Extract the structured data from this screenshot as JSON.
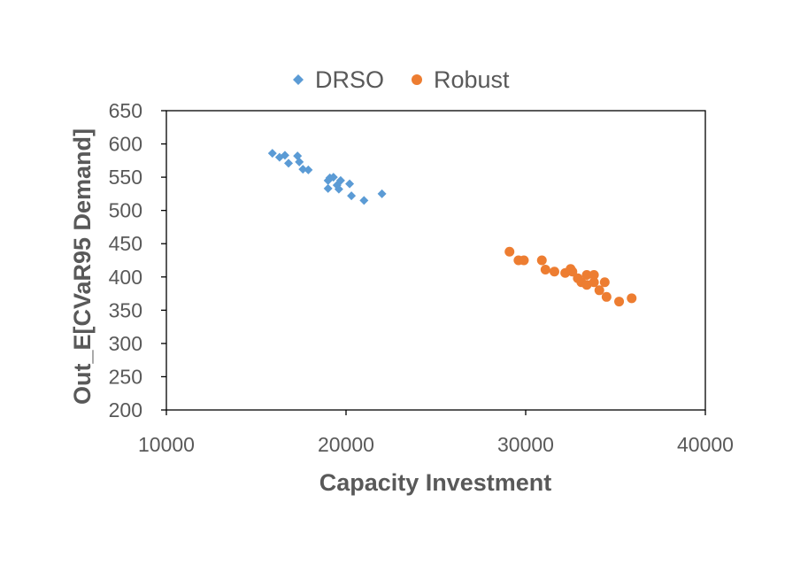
{
  "chart_data": {
    "type": "scatter",
    "title": "",
    "xlabel": "Capacity Investment",
    "ylabel": "Out_E[CVaR95 Demand]",
    "xlim": [
      10000,
      40000
    ],
    "ylim": [
      200,
      650
    ],
    "xticks": [
      10000,
      20000,
      30000,
      40000
    ],
    "yticks": [
      200,
      250,
      300,
      350,
      400,
      450,
      500,
      550,
      600,
      650
    ],
    "grid": false,
    "legend_position": "top",
    "series": [
      {
        "name": "DRSO",
        "marker": "diamond",
        "color": "#5B9BD5",
        "points": [
          [
            15900,
            586
          ],
          [
            16300,
            580
          ],
          [
            16600,
            583
          ],
          [
            16800,
            571
          ],
          [
            17300,
            582
          ],
          [
            17400,
            573
          ],
          [
            17600,
            562
          ],
          [
            17900,
            561
          ],
          [
            19000,
            545
          ],
          [
            19000,
            533
          ],
          [
            19100,
            549
          ],
          [
            19300,
            550
          ],
          [
            19500,
            538
          ],
          [
            19700,
            545
          ],
          [
            19600,
            532
          ],
          [
            20200,
            540
          ],
          [
            20300,
            522
          ],
          [
            21000,
            515
          ],
          [
            22000,
            525
          ]
        ]
      },
      {
        "name": "Robust",
        "marker": "circle",
        "color": "#ED7D31",
        "points": [
          [
            29100,
            438
          ],
          [
            29600,
            425
          ],
          [
            29900,
            425
          ],
          [
            30900,
            425
          ],
          [
            31100,
            411
          ],
          [
            31600,
            408
          ],
          [
            32200,
            406
          ],
          [
            32500,
            412
          ],
          [
            32600,
            408
          ],
          [
            32900,
            398
          ],
          [
            33100,
            392
          ],
          [
            33400,
            388
          ],
          [
            33400,
            403
          ],
          [
            33800,
            392
          ],
          [
            33800,
            403
          ],
          [
            34100,
            380
          ],
          [
            34400,
            392
          ],
          [
            34500,
            370
          ],
          [
            35200,
            363
          ],
          [
            35900,
            368
          ]
        ]
      }
    ]
  }
}
